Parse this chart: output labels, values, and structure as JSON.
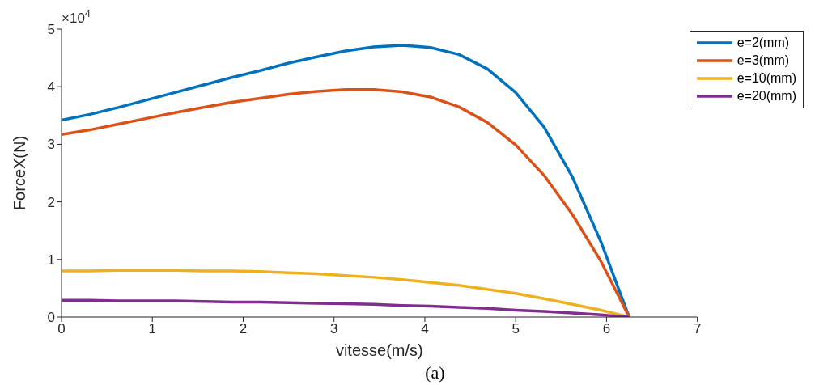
{
  "chart_data": {
    "type": "line",
    "xlabel": "vitesse(m/s)",
    "ylabel": "ForceX(N)",
    "annotations": [
      "×10$^{4}$",
      "(a)"
    ],
    "x": [
      0,
      0.3125,
      0.625,
      0.9375,
      1.25,
      1.5625,
      1.875,
      2.1875,
      2.5,
      2.8125,
      3.125,
      3.4375,
      3.75,
      4.0625,
      4.375,
      4.6875,
      5,
      5.3125,
      5.625,
      5.9375,
      6.25
    ],
    "series": [
      {
        "name": "e=2(mm)",
        "color": "#0072bd",
        "values": [
          3.42,
          3.52,
          3.64,
          3.77,
          3.9,
          4.03,
          4.16,
          4.28,
          4.41,
          4.52,
          4.62,
          4.69,
          4.72,
          4.68,
          4.56,
          4.31,
          3.9,
          3.3,
          2.43,
          1.31,
          0
        ]
      },
      {
        "name": "e=3(mm)",
        "color": "#d95319",
        "values": [
          3.17,
          3.25,
          3.35,
          3.45,
          3.55,
          3.64,
          3.73,
          3.8,
          3.87,
          3.92,
          3.95,
          3.95,
          3.91,
          3.82,
          3.65,
          3.38,
          2.99,
          2.46,
          1.78,
          0.97,
          0
        ]
      },
      {
        "name": "e=10(mm)",
        "color": "#edb120",
        "values": [
          0.8,
          0.8,
          0.81,
          0.81,
          0.81,
          0.8,
          0.8,
          0.79,
          0.77,
          0.75,
          0.72,
          0.69,
          0.65,
          0.6,
          0.55,
          0.48,
          0.41,
          0.32,
          0.22,
          0.12,
          0
        ]
      },
      {
        "name": "e=20(mm)",
        "color": "#7e2f8e",
        "values": [
          0.29,
          0.29,
          0.28,
          0.28,
          0.28,
          0.27,
          0.26,
          0.26,
          0.25,
          0.24,
          0.23,
          0.22,
          0.2,
          0.19,
          0.17,
          0.15,
          0.12,
          0.1,
          0.07,
          0.04,
          0
        ]
      }
    ],
    "xlim": [
      0,
      7
    ],
    "xticks": [
      0,
      1,
      2,
      3,
      4,
      5,
      6,
      7
    ],
    "ylim": [
      0,
      5
    ],
    "yticks": [
      0,
      1,
      2,
      3,
      4,
      5
    ],
    "grid": false,
    "legend": "top right",
    "marker": "none",
    "line_style": "solid"
  }
}
